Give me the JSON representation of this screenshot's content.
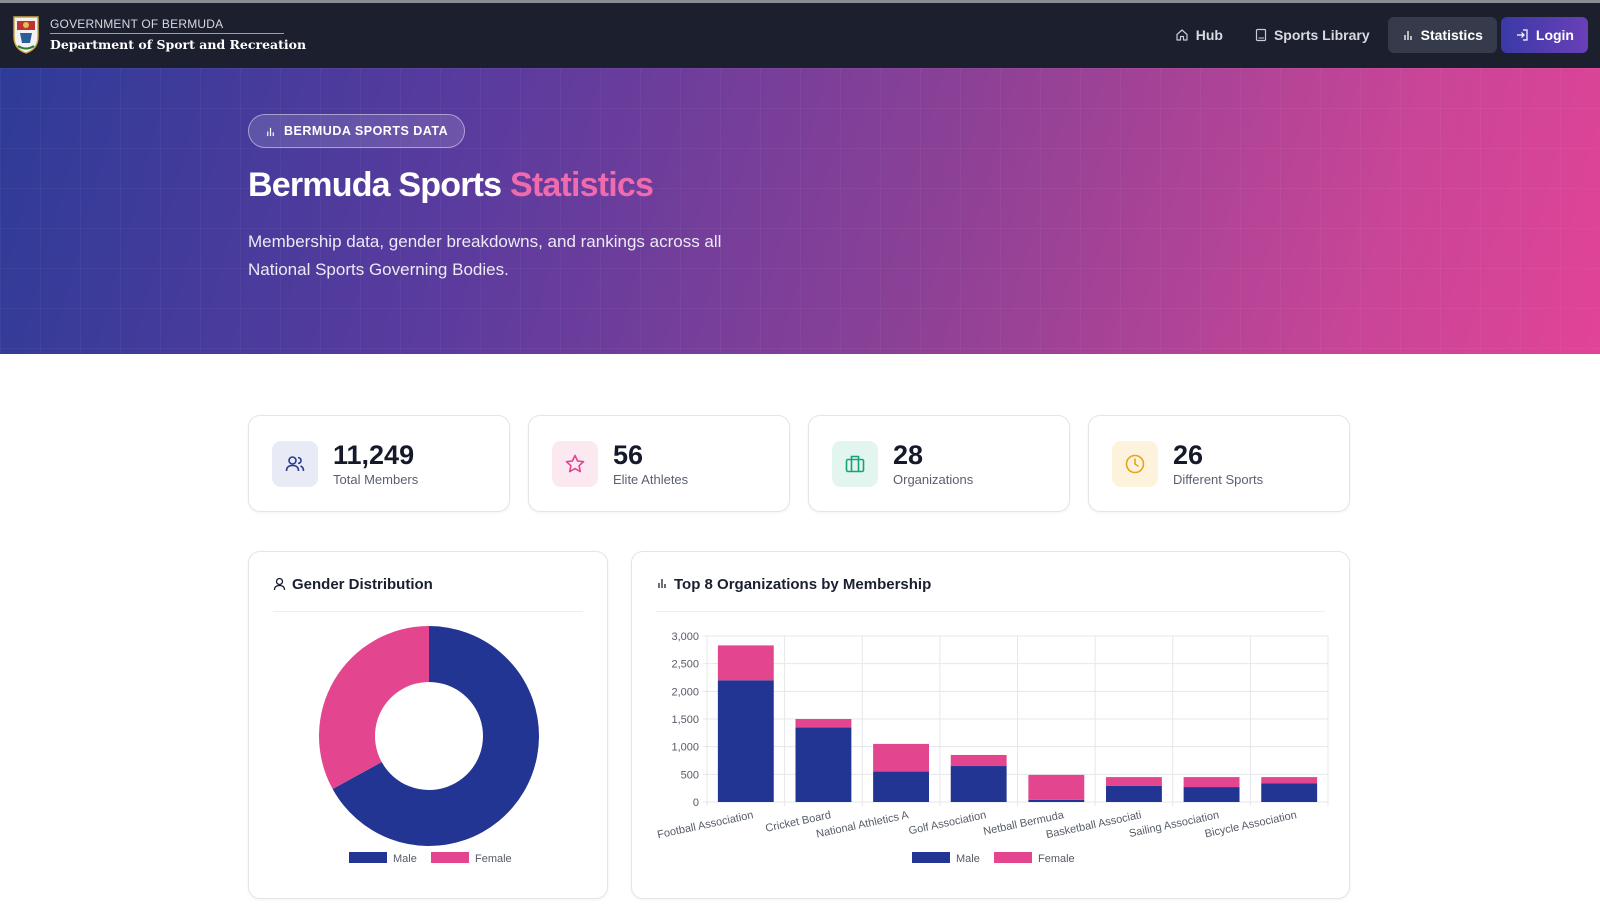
{
  "header": {
    "gov_name": "GOVERNMENT OF BERMUDA",
    "dept_name": "Department of Sport and Recreation",
    "nav": [
      {
        "label": "Hub",
        "icon": "home-icon"
      },
      {
        "label": "Sports Library",
        "icon": "book-icon"
      },
      {
        "label": "Statistics",
        "icon": "bar-chart-icon",
        "active": true
      },
      {
        "label": "Login",
        "icon": "login-icon"
      }
    ]
  },
  "hero": {
    "badge": "BERMUDA SPORTS DATA",
    "title_main": "Bermuda Sports",
    "title_accent": "Statistics",
    "subtitle": "Membership data, gender breakdowns, and rankings across all National Sports Governing Bodies."
  },
  "stats": [
    {
      "value": "11,249",
      "label": "Total Members",
      "icon": "users-icon",
      "color": "#2b3a8f",
      "bg": "#e8ebf6"
    },
    {
      "value": "56",
      "label": "Elite Athletes",
      "icon": "star-icon",
      "color": "#e0458f",
      "bg": "#fce8f1"
    },
    {
      "value": "28",
      "label": "Organizations",
      "icon": "building-icon",
      "color": "#16a37a",
      "bg": "#e2f5ee"
    },
    {
      "value": "26",
      "label": "Different Sports",
      "icon": "clock-icon",
      "color": "#e8a21a",
      "bg": "#fdf3dd"
    }
  ],
  "gender_card": {
    "title": "Gender Distribution"
  },
  "orgs_card": {
    "title": "Top 8 Organizations by Membership"
  },
  "colors": {
    "male": "#233593",
    "female": "#e4458f"
  },
  "chart_data": [
    {
      "type": "pie",
      "title": "Gender Distribution",
      "categories": [
        "Male",
        "Female"
      ],
      "values": [
        67,
        33
      ],
      "legend": "bottom"
    },
    {
      "type": "bar",
      "stacked": true,
      "title": "Top 8 Organizations by Membership",
      "categories": [
        "Football Association",
        "Cricket Board",
        "National Athletics A",
        "Golf Association",
        "Netball Bermuda",
        "Basketball Associati",
        "Sailing Association",
        "Bicycle Association"
      ],
      "series": [
        {
          "name": "Male",
          "values": [
            2200,
            1350,
            550,
            650,
            40,
            290,
            270,
            340
          ]
        },
        {
          "name": "Female",
          "values": [
            630,
            150,
            500,
            200,
            450,
            160,
            180,
            110
          ]
        }
      ],
      "ylim": [
        0,
        3000
      ],
      "yticks": [
        "0",
        "500",
        "1,000",
        "1,500",
        "2,000",
        "2,500",
        "3,000"
      ],
      "grid": true,
      "legend": "bottom"
    }
  ]
}
